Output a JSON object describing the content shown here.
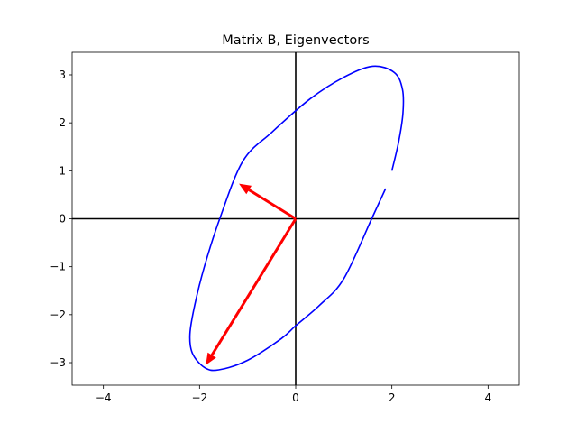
{
  "chart_data": {
    "type": "line",
    "title": "Matrix B, Eigenvectors",
    "xlabel": "",
    "ylabel": "",
    "xlim": [
      -4.65,
      4.65
    ],
    "ylim": [
      -3.47,
      3.47
    ],
    "xticks": [
      -4,
      -2,
      0,
      2,
      4
    ],
    "yticks": [
      -3,
      -2,
      -1,
      0,
      1,
      2,
      3
    ],
    "tick_labels": {
      "x": [
        "−4",
        "−2",
        "0",
        "2",
        "4"
      ],
      "y": [
        "−3",
        "−2",
        "−1",
        "0",
        "1",
        "2",
        "3"
      ]
    },
    "grid": false,
    "legend": "none",
    "axes_lines": {
      "x": 0,
      "y": 0,
      "color": "#000000"
    },
    "ellipse": {
      "color": "#0000ff",
      "points": [
        [
          2.0,
          1.0
        ],
        [
          2.14,
          1.6
        ],
        [
          2.23,
          2.2
        ],
        [
          2.22,
          2.7
        ],
        [
          2.05,
          3.05
        ],
        [
          1.6,
          3.18
        ],
        [
          1.0,
          2.95
        ],
        [
          0.3,
          2.5
        ],
        [
          -0.5,
          1.8
        ],
        [
          -1.1,
          1.2
        ],
        [
          -1.58,
          0.0
        ],
        [
          -1.9,
          -1.0
        ],
        [
          -2.1,
          -1.8
        ],
        [
          -2.2,
          -2.4
        ],
        [
          -2.15,
          -2.8
        ],
        [
          -1.9,
          -3.1
        ],
        [
          -1.6,
          -3.15
        ],
        [
          -1.0,
          -2.95
        ],
        [
          -0.3,
          -2.5
        ],
        [
          0.0,
          -2.23
        ],
        [
          0.5,
          -1.8
        ],
        [
          1.0,
          -1.25
        ],
        [
          1.58,
          0.0
        ],
        [
          1.87,
          0.63
        ]
      ]
    },
    "vectors": [
      {
        "color": "#ff0000",
        "from": [
          0,
          0
        ],
        "to": [
          -1.18,
          0.73
        ]
      },
      {
        "color": "#ff0000",
        "from": [
          0,
          0
        ],
        "to": [
          -1.87,
          -3.05
        ]
      }
    ]
  }
}
